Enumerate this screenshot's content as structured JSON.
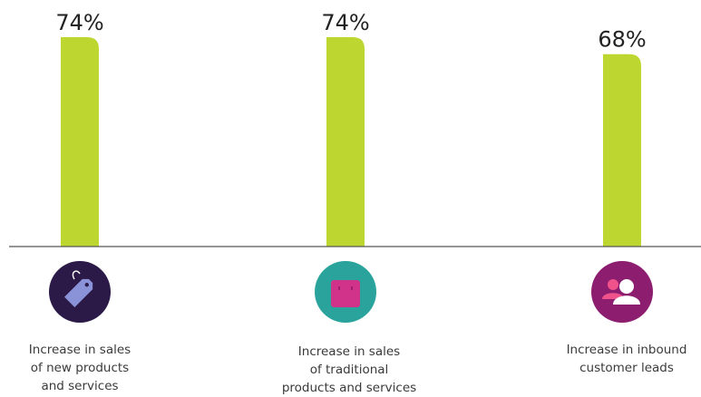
{
  "chart_data": {
    "type": "bar",
    "categories": [
      "Increase in sales\nof new products\nand services",
      "Increase in sales\nof traditional\nproducts and services",
      "Increase in inbound\ncustomer leads"
    ],
    "values": [
      74,
      74,
      68
    ],
    "value_labels": [
      "74%",
      "74%",
      "68%"
    ],
    "ylim": [
      0,
      74
    ],
    "grid": false,
    "legend": "none",
    "icons": [
      "price-tag-icon",
      "shopping-bag-icon",
      "people-icon"
    ],
    "colors": {
      "bar": "#bed630",
      "axis": "#555555",
      "icon_circles": [
        "#2b1a47",
        "#2aa39c",
        "#8c1d6f"
      ],
      "icon_glyphs": [
        "#8a93d8",
        "#d1338a",
        "#ffffff"
      ],
      "icon_accent": "#f0528b"
    }
  }
}
